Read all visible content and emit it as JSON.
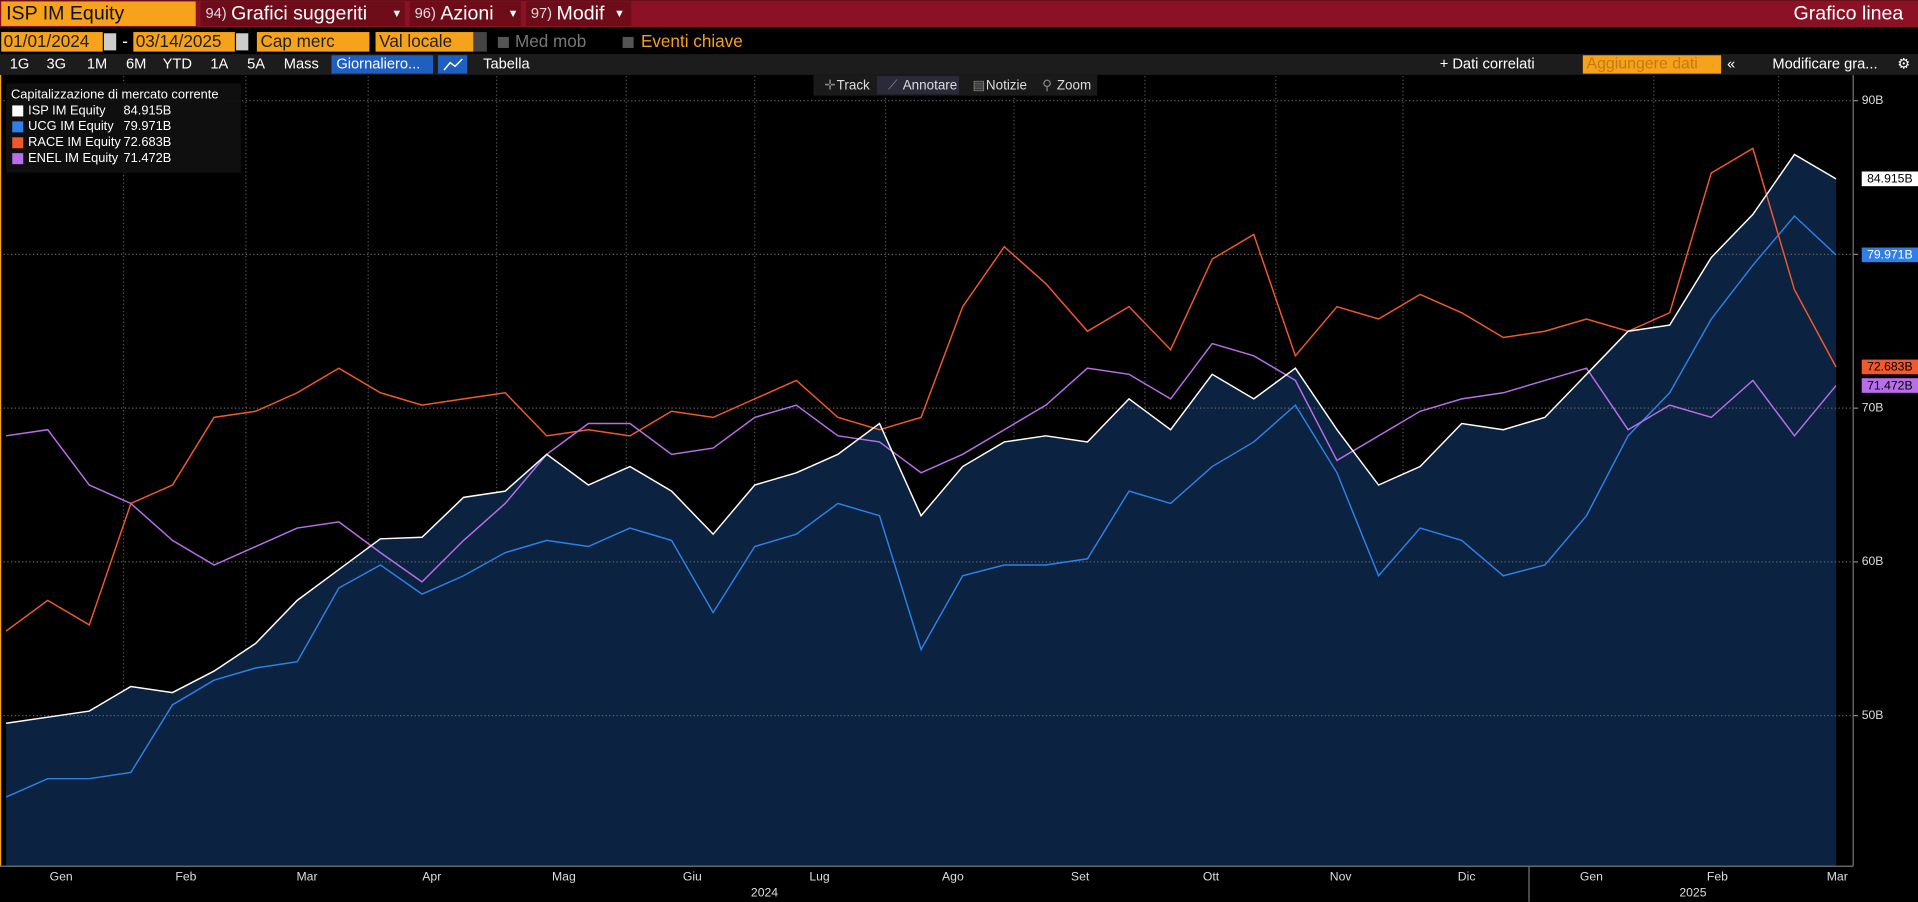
{
  "toolbar": {
    "ticker": "ISP IM Equity",
    "menus": [
      {
        "number": "94)",
        "label": "Grafici suggeriti"
      },
      {
        "number": "96)",
        "label": "Azioni"
      },
      {
        "number": "97)",
        "label": "Modif"
      }
    ],
    "chart_kind": "Grafico linea"
  },
  "controls": {
    "start_date": "01/01/2024",
    "separator": "-",
    "end_date": "03/14/2025",
    "field": "Cap merc",
    "currency": "Val locale",
    "moving_avg": "Med mob",
    "key_events": "Eventi chiave"
  },
  "periods": [
    "1G",
    "3G",
    "1M",
    "6M",
    "YTD",
    "1A",
    "5A",
    "Mass"
  ],
  "frequency": "Giornaliero...",
  "table": "Tabella",
  "related": "+ Dati correlati",
  "add_data": "Aggiungere dati",
  "edit": "Modificare gra...",
  "chart_tools": [
    "Track",
    "Annotare",
    "Notizie",
    "Zoom"
  ],
  "chart_data": {
    "type": "line",
    "legend_title": "Capitalizzazione di mercato corrente",
    "x_labels": [
      "Gen",
      "Feb",
      "Mar",
      "Apr",
      "Mag",
      "Giu",
      "Lug",
      "Ago",
      "Set",
      "Ott",
      "Nov",
      "Dic",
      "Gen",
      "Feb",
      "Mar"
    ],
    "years": [
      "2024",
      "2025"
    ],
    "ylim": [
      40.2,
      91.6
    ],
    "yticks": [
      {
        "value": 50,
        "label": "50B"
      },
      {
        "value": 60,
        "label": "60B"
      },
      {
        "value": 70,
        "label": "70B"
      },
      {
        "value": 80,
        "label": "80B"
      },
      {
        "value": 90,
        "label": "90B"
      }
    ],
    "grid": true,
    "area_color": "#0b2340",
    "series": [
      {
        "name": "ISP IM Equity",
        "color": "#ffffff",
        "last_value_label": "84.915B",
        "values": [
          49.5,
          49.9,
          50.3,
          51.9,
          51.5,
          52.9,
          54.7,
          57.5,
          59.5,
          61.5,
          61.6,
          64.2,
          64.6,
          67.0,
          65.0,
          66.2,
          64.6,
          61.8,
          65.0,
          65.8,
          67.0,
          69.0,
          63.0,
          66.2,
          67.8,
          68.2,
          67.8,
          70.6,
          68.6,
          72.2,
          70.6,
          72.6,
          68.6,
          65.0,
          66.2,
          69.0,
          68.6,
          69.4,
          72.2,
          75.0,
          75.4,
          79.8,
          82.6,
          86.5,
          84.915
        ]
      },
      {
        "name": "UCG IM Equity",
        "color": "#2f7fe6",
        "last_value_label": "79.971B",
        "values": [
          44.7,
          45.9,
          45.9,
          46.3,
          50.7,
          52.3,
          53.1,
          53.5,
          58.3,
          59.8,
          57.9,
          59.1,
          60.6,
          61.4,
          61.0,
          62.2,
          61.4,
          56.7,
          61.0,
          61.8,
          63.8,
          63.0,
          54.3,
          59.1,
          59.8,
          59.8,
          60.2,
          64.6,
          63.8,
          66.2,
          67.8,
          70.2,
          65.8,
          59.1,
          62.2,
          61.4,
          59.1,
          59.8,
          63.0,
          68.2,
          71.0,
          75.8,
          79.3,
          82.5,
          79.971
        ]
      },
      {
        "name": "RACE IM Equity",
        "color": "#f0592b",
        "last_value_label": "72.683B",
        "values": [
          55.5,
          57.5,
          55.9,
          63.8,
          65.0,
          69.4,
          69.8,
          71.0,
          72.6,
          71.0,
          70.2,
          70.6,
          71.0,
          68.2,
          68.6,
          68.2,
          69.8,
          69.4,
          70.6,
          71.8,
          69.4,
          68.6,
          69.4,
          76.6,
          80.5,
          78.1,
          75.0,
          76.6,
          73.8,
          79.7,
          81.3,
          73.4,
          76.6,
          75.8,
          77.4,
          76.2,
          74.6,
          75.0,
          75.8,
          75.0,
          76.2,
          85.3,
          86.9,
          77.7,
          72.683
        ]
      },
      {
        "name": "ENEL IM Equity",
        "color": "#b86ee8",
        "last_value_label": "71.472B",
        "values": [
          68.2,
          68.6,
          65.0,
          63.8,
          61.4,
          59.8,
          61.0,
          62.2,
          62.6,
          60.6,
          58.7,
          61.4,
          63.8,
          67.0,
          69.0,
          69.0,
          67.0,
          67.4,
          69.4,
          70.2,
          68.2,
          67.8,
          65.8,
          67.0,
          68.6,
          70.2,
          72.6,
          72.2,
          70.6,
          74.2,
          73.4,
          71.8,
          66.6,
          68.2,
          69.8,
          70.6,
          71.0,
          71.8,
          72.6,
          68.6,
          70.2,
          69.4,
          71.8,
          68.2,
          71.472
        ]
      }
    ]
  }
}
